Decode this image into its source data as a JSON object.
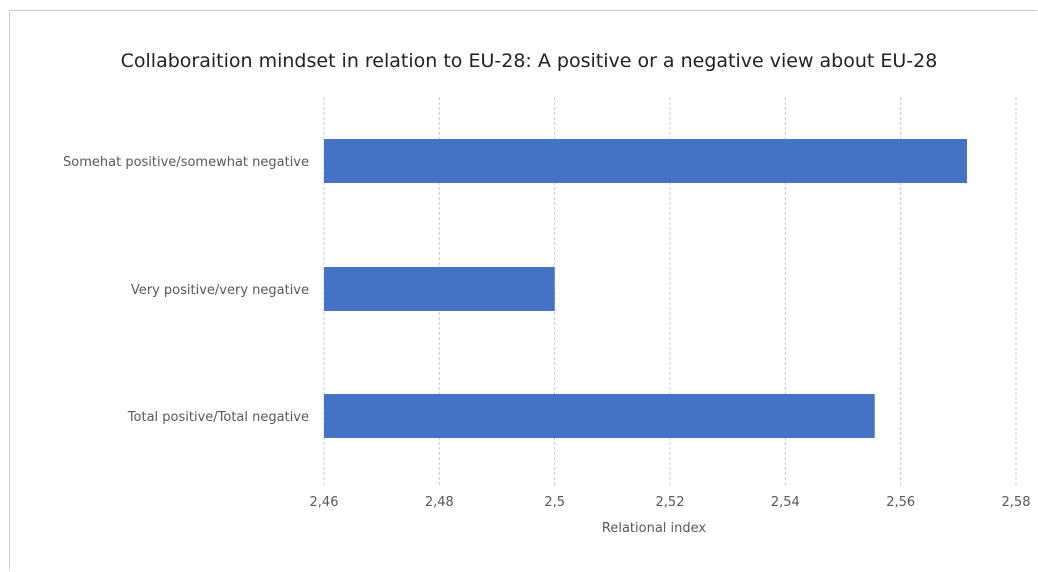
{
  "chart_data": {
    "type": "bar",
    "orientation": "horizontal",
    "title": "Collaboraition mindset in relation to EU-28: A positive or a negative view about EU-28",
    "xlabel": "Relational index",
    "ylabel": "",
    "categories": [
      "Somehat positive/somewhat negative",
      "Very positive/very negative",
      "Total positive/Total negative"
    ],
    "values": [
      2.5715,
      2.5,
      2.5555
    ],
    "xlim": [
      2.46,
      2.58
    ],
    "ticks": [
      2.46,
      2.48,
      2.5,
      2.52,
      2.54,
      2.56,
      2.58
    ],
    "tick_labels": [
      "2,46",
      "2,48",
      "2,5",
      "2,52",
      "2,54",
      "2,56",
      "2,58"
    ],
    "bar_color": "#4472c4",
    "grid": true,
    "gridline_style": "dashed",
    "legend": "none"
  }
}
